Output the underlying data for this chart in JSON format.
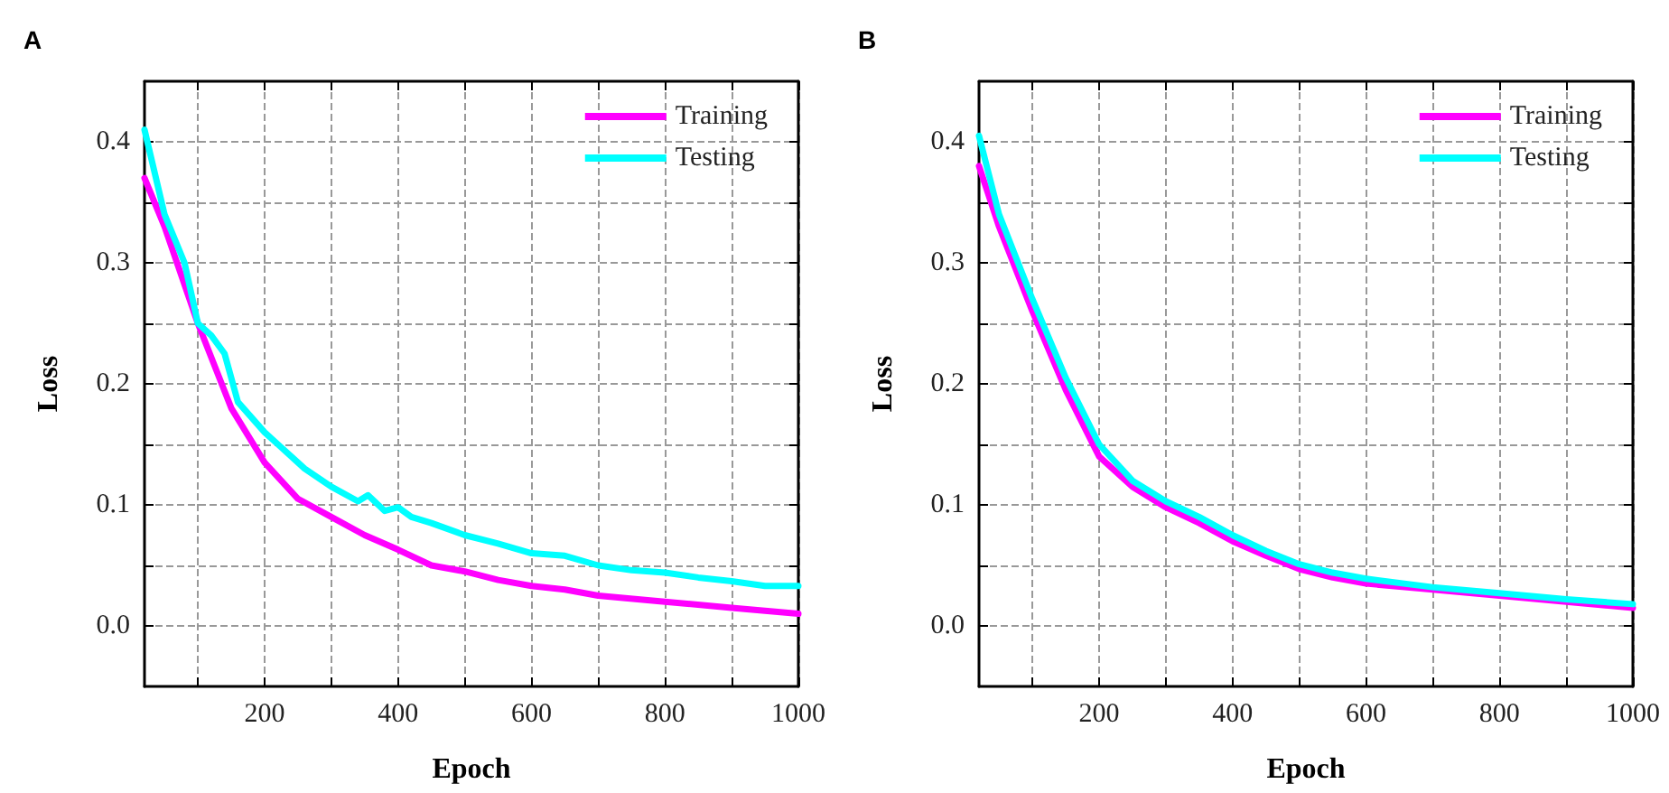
{
  "chart_data": [
    {
      "type": "line",
      "title": "A",
      "xlabel": "Epoch",
      "ylabel": "Loss",
      "xlim": [
        20,
        1000
      ],
      "ylim": [
        -0.05,
        0.45
      ],
      "xticks": [
        {
          "value": 100,
          "label": null
        },
        200,
        {
          "value": 300,
          "label": null
        },
        400,
        {
          "value": 500,
          "label": null
        },
        600,
        {
          "value": 700,
          "label": null
        },
        800,
        {
          "value": 900,
          "label": null
        },
        1000
      ],
      "yticks": [
        {
          "value": 0,
          "label": "0.0"
        },
        {
          "value": 0.05,
          "label": null
        },
        {
          "value": 0.1,
          "label": "0.1"
        },
        {
          "value": 0.15,
          "label": null
        },
        {
          "value": 0.2,
          "label": "0.2"
        },
        {
          "value": 0.25,
          "label": null
        },
        {
          "value": 0.3,
          "label": "0.3"
        },
        {
          "value": 0.35,
          "label": null
        },
        {
          "value": 0.4,
          "label": "0.4"
        }
      ],
      "grid": true,
      "legend": "top right",
      "line_style": "solid",
      "series": [
        {
          "name": "Training",
          "color": "#ff00ff",
          "x": [
            20,
            50,
            100,
            150,
            200,
            250,
            300,
            350,
            400,
            450,
            500,
            550,
            600,
            650,
            700,
            800,
            900,
            1000
          ],
          "values": [
            0.37,
            0.33,
            0.25,
            0.18,
            0.135,
            0.105,
            0.09,
            0.075,
            0.063,
            0.05,
            0.045,
            0.038,
            0.033,
            0.03,
            0.025,
            0.02,
            0.015,
            0.01
          ]
        },
        {
          "name": "Testing",
          "color": "#00ffff",
          "x": [
            20,
            50,
            80,
            100,
            120,
            140,
            160,
            200,
            220,
            260,
            300,
            340,
            355,
            380,
            400,
            420,
            450,
            500,
            550,
            600,
            650,
            700,
            750,
            800,
            850,
            900,
            950,
            1000
          ],
          "values": [
            0.41,
            0.34,
            0.3,
            0.25,
            0.24,
            0.225,
            0.185,
            0.16,
            0.15,
            0.13,
            0.115,
            0.103,
            0.108,
            0.095,
            0.098,
            0.09,
            0.085,
            0.075,
            0.068,
            0.06,
            0.058,
            0.05,
            0.046,
            0.044,
            0.04,
            0.037,
            0.033,
            0.033
          ]
        }
      ]
    },
    {
      "type": "line",
      "title": "B",
      "xlabel": "Epoch",
      "ylabel": "Loss",
      "xlim": [
        20,
        1000
      ],
      "ylim": [
        -0.05,
        0.45
      ],
      "xticks": [
        {
          "value": 100,
          "label": null
        },
        200,
        {
          "value": 300,
          "label": null
        },
        400,
        {
          "value": 500,
          "label": null
        },
        600,
        {
          "value": 700,
          "label": null
        },
        800,
        {
          "value": 900,
          "label": null
        },
        1000
      ],
      "yticks": [
        {
          "value": 0,
          "label": "0.0"
        },
        {
          "value": 0.05,
          "label": null
        },
        {
          "value": 0.1,
          "label": "0.1"
        },
        {
          "value": 0.15,
          "label": null
        },
        {
          "value": 0.2,
          "label": "0.2"
        },
        {
          "value": 0.25,
          "label": null
        },
        {
          "value": 0.3,
          "label": "0.3"
        },
        {
          "value": 0.35,
          "label": null
        },
        {
          "value": 0.4,
          "label": "0.4"
        }
      ],
      "grid": true,
      "legend": "top right",
      "line_style": "solid",
      "series": [
        {
          "name": "Training",
          "color": "#ff00ff",
          "x": [
            20,
            50,
            100,
            150,
            200,
            250,
            300,
            350,
            400,
            450,
            500,
            550,
            600,
            700,
            800,
            900,
            1000
          ],
          "values": [
            0.38,
            0.33,
            0.26,
            0.195,
            0.14,
            0.115,
            0.098,
            0.085,
            0.07,
            0.058,
            0.047,
            0.04,
            0.035,
            0.03,
            0.025,
            0.02,
            0.015
          ]
        },
        {
          "name": "Testing",
          "color": "#00ffff",
          "x": [
            20,
            50,
            100,
            150,
            200,
            250,
            300,
            350,
            400,
            450,
            500,
            550,
            600,
            700,
            800,
            900,
            1000
          ],
          "values": [
            0.405,
            0.34,
            0.27,
            0.205,
            0.15,
            0.12,
            0.103,
            0.09,
            0.075,
            0.062,
            0.051,
            0.044,
            0.039,
            0.032,
            0.027,
            0.022,
            0.018
          ]
        }
      ]
    }
  ]
}
